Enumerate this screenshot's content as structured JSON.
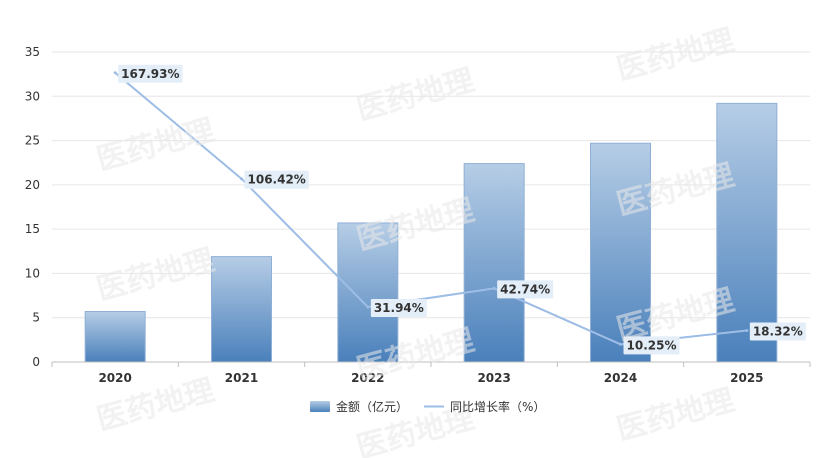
{
  "chart_data": {
    "type": "bar",
    "categories": [
      "2020",
      "2021",
      "2022",
      "2023",
      "2024",
      "2025"
    ],
    "series": [
      {
        "name": "金额（亿元）",
        "type": "bar",
        "axis": "left",
        "values": [
          5.7,
          11.9,
          15.7,
          22.4,
          24.7,
          29.2
        ]
      },
      {
        "name": "同比增长率（%）",
        "type": "line",
        "axis": "right",
        "values": [
          167.93,
          106.42,
          31.94,
          42.74,
          10.25,
          18.32
        ],
        "labels": [
          "167.93%",
          "106.42%",
          "31.94%",
          "42.74%",
          "10.25%",
          "18.32%"
        ]
      }
    ],
    "ylim": [
      0,
      35
    ],
    "yticks": [
      "0",
      "5",
      "10",
      "15",
      "20",
      "25",
      "30",
      "35"
    ],
    "y2lim": [
      0,
      180
    ],
    "grid": true,
    "legend": "bottom-center",
    "colors": {
      "bar_top": "#b6cde6",
      "bar_bottom": "#4a80bb",
      "bar_stroke": "#8fb0d6",
      "line": "#9dbde6",
      "label_bg": "#e4eef8",
      "grid": "#e6e6e6",
      "axis": "#bfbfbf"
    }
  },
  "watermark": "医药地理"
}
